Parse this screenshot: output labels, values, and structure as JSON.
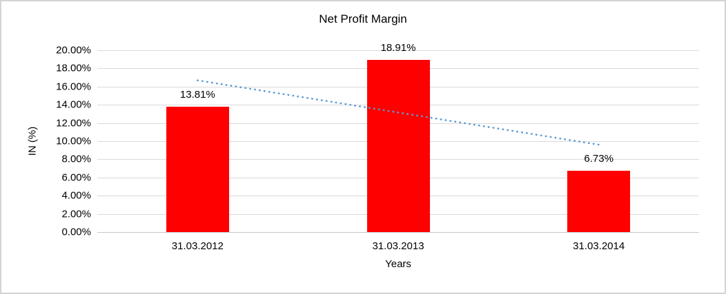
{
  "chart_data": {
    "type": "bar",
    "title": "Net Profit Margin",
    "categories": [
      "31.03.2012",
      "31.03.2013",
      "31.03.2014"
    ],
    "series": [
      {
        "name": "Net Profit Margin",
        "values": [
          13.81,
          18.91,
          6.73
        ]
      }
    ],
    "value_labels": [
      "13.81%",
      "18.91%",
      "6.73%"
    ],
    "xlabel": "Years",
    "ylabel": "IN (%)",
    "ylim": [
      0,
      20
    ],
    "ytick_step": 2,
    "ytick_labels": [
      "0.00%",
      "2.00%",
      "4.00%",
      "6.00%",
      "8.00%",
      "10.00%",
      "12.00%",
      "14.00%",
      "16.00%",
      "18.00%",
      "20.00%"
    ],
    "grid": true,
    "legend": "none",
    "trendline": {
      "style": "dotted",
      "start_value": 16.69,
      "end_value": 9.61,
      "color": "#5b9bd5"
    },
    "colors": {
      "bar": "#ff0000",
      "gridline": "#d9d9d9",
      "text": "#000000",
      "background": "#ffffff",
      "frame_border": "#d3d3d3"
    }
  }
}
